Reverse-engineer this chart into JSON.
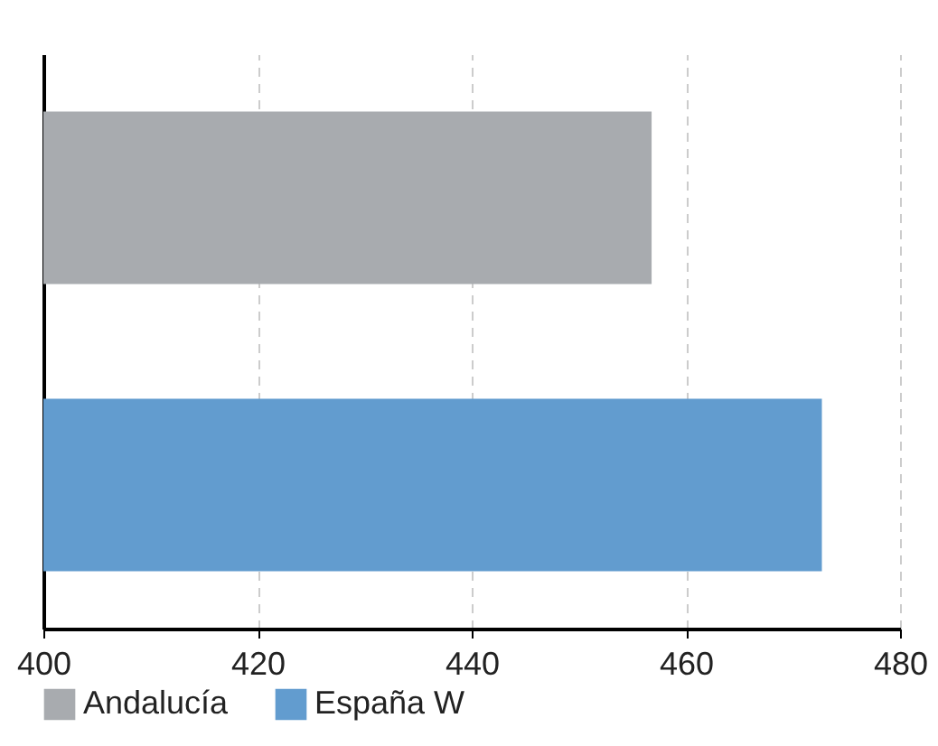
{
  "chart_data": {
    "type": "bar",
    "orientation": "horizontal",
    "categories": [
      null,
      null
    ],
    "series": [
      {
        "name": "Andalucía",
        "color": "#a8abaf",
        "values": [
          456.8,
          null
        ]
      },
      {
        "name": "España W",
        "color": "#629ccf",
        "values": [
          null,
          472.7
        ]
      }
    ],
    "xlim": [
      400,
      480
    ],
    "xticks": [
      400,
      420,
      440,
      460,
      480
    ],
    "grid": "x",
    "legend": "bottom"
  }
}
